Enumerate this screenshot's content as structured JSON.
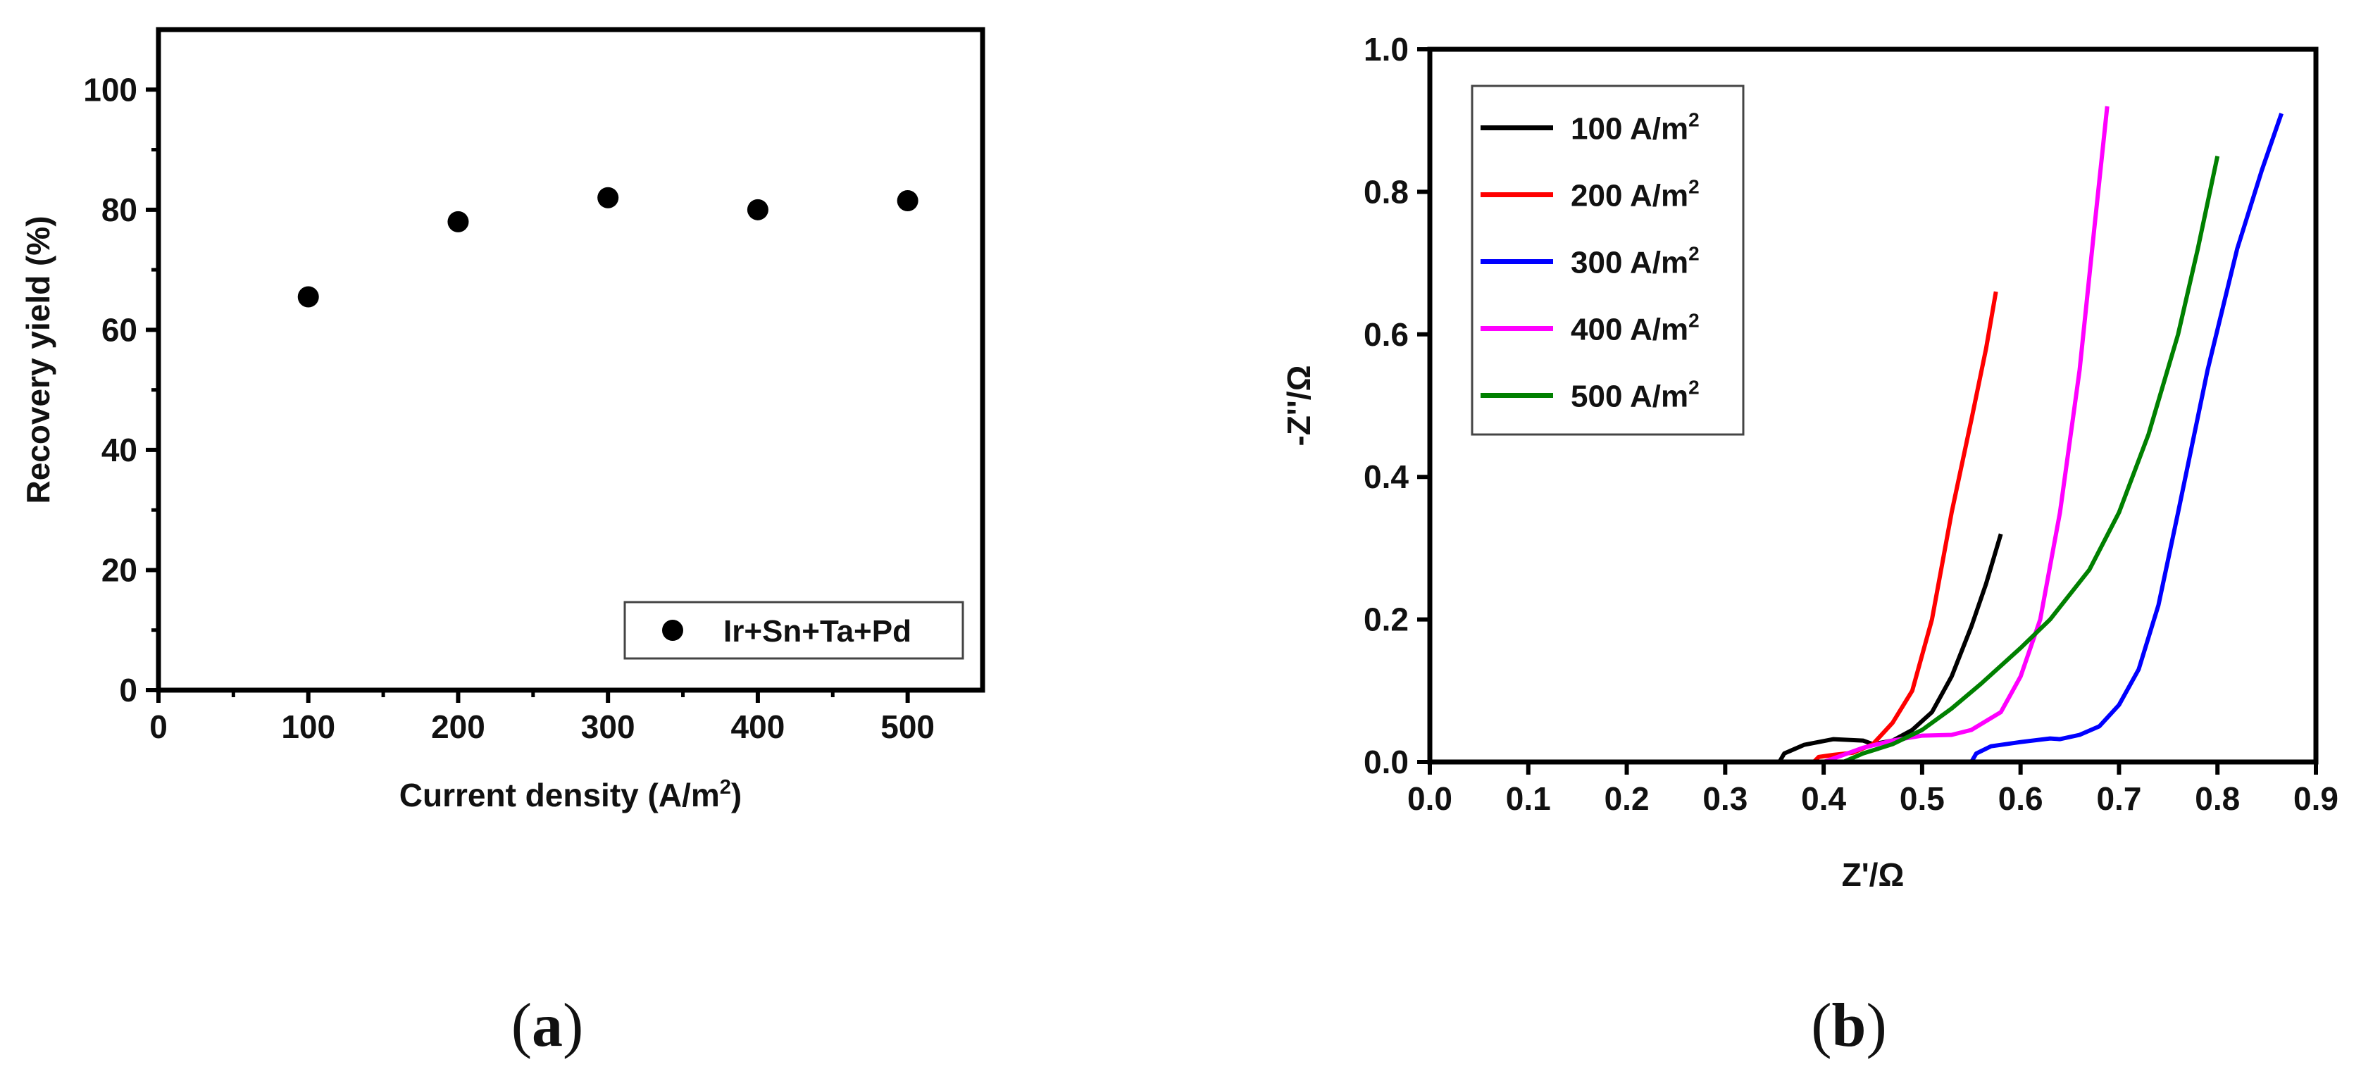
{
  "chart_data": [
    {
      "id": "a",
      "type": "scatter",
      "panel_label": "a",
      "xlabel": "Current density (A/m",
      "xlabel_sup": "2",
      "xlabel_tail": ")",
      "ylabel": "Recovery yield (%)",
      "xlim": [
        0,
        550
      ],
      "ylim": [
        0,
        110
      ],
      "xticks": [
        0,
        100,
        200,
        300,
        400,
        500
      ],
      "yticks": [
        0,
        20,
        40,
        60,
        80,
        100
      ],
      "grid": false,
      "legend_position": "bottom-right",
      "series": [
        {
          "name": "Ir+Sn+Ta+Pd",
          "color": "#000000",
          "x": [
            100,
            200,
            300,
            400,
            500
          ],
          "y": [
            65.5,
            78.0,
            82.0,
            80.0,
            81.5
          ]
        }
      ]
    },
    {
      "id": "b",
      "type": "line",
      "panel_label": "b",
      "xlabel": "Z'/Ω",
      "ylabel": "-Z''/Ω",
      "xlim": [
        0.0,
        0.9
      ],
      "ylim": [
        0.0,
        1.0
      ],
      "xticks": [
        0.0,
        0.1,
        0.2,
        0.3,
        0.4,
        0.5,
        0.6,
        0.7,
        0.8,
        0.9
      ],
      "yticks": [
        0.0,
        0.2,
        0.4,
        0.6,
        0.8,
        1.0
      ],
      "grid": false,
      "legend_position": "top-left",
      "series": [
        {
          "name": "100 A/m",
          "name_sup": "2",
          "color": "#000000",
          "points": [
            [
              0.355,
              0.0
            ],
            [
              0.36,
              0.012
            ],
            [
              0.38,
              0.024
            ],
            [
              0.41,
              0.032
            ],
            [
              0.44,
              0.03
            ],
            [
              0.45,
              0.025
            ],
            [
              0.47,
              0.03
            ],
            [
              0.49,
              0.045
            ],
            [
              0.51,
              0.07
            ],
            [
              0.53,
              0.12
            ],
            [
              0.55,
              0.19
            ],
            [
              0.565,
              0.25
            ],
            [
              0.58,
              0.32
            ]
          ]
        },
        {
          "name": "200 A/m",
          "name_sup": "2",
          "color": "#ff0000",
          "points": [
            [
              0.39,
              0.0
            ],
            [
              0.395,
              0.007
            ],
            [
              0.41,
              0.01
            ],
            [
              0.43,
              0.013
            ],
            [
              0.45,
              0.025
            ],
            [
              0.47,
              0.055
            ],
            [
              0.49,
              0.1
            ],
            [
              0.51,
              0.2
            ],
            [
              0.53,
              0.35
            ],
            [
              0.55,
              0.48
            ],
            [
              0.565,
              0.58
            ],
            [
              0.575,
              0.66
            ]
          ]
        },
        {
          "name": "300 A/m",
          "name_sup": "2",
          "color": "#0000ff",
          "points": [
            [
              0.55,
              0.0
            ],
            [
              0.555,
              0.012
            ],
            [
              0.57,
              0.022
            ],
            [
              0.6,
              0.028
            ],
            [
              0.63,
              0.033
            ],
            [
              0.64,
              0.032
            ],
            [
              0.66,
              0.038
            ],
            [
              0.68,
              0.05
            ],
            [
              0.7,
              0.08
            ],
            [
              0.72,
              0.13
            ],
            [
              0.74,
              0.22
            ],
            [
              0.76,
              0.35
            ],
            [
              0.79,
              0.55
            ],
            [
              0.82,
              0.72
            ],
            [
              0.845,
              0.83
            ],
            [
              0.865,
              0.91
            ]
          ]
        },
        {
          "name": "400 A/m",
          "name_sup": "2",
          "color": "#ff00ff",
          "points": [
            [
              0.4,
              0.0
            ],
            [
              0.42,
              0.01
            ],
            [
              0.44,
              0.02
            ],
            [
              0.47,
              0.03
            ],
            [
              0.5,
              0.037
            ],
            [
              0.53,
              0.038
            ],
            [
              0.55,
              0.045
            ],
            [
              0.58,
              0.07
            ],
            [
              0.6,
              0.12
            ],
            [
              0.62,
              0.2
            ],
            [
              0.64,
              0.35
            ],
            [
              0.66,
              0.55
            ],
            [
              0.675,
              0.75
            ],
            [
              0.688,
              0.92
            ]
          ]
        },
        {
          "name": "500 A/m",
          "name_sup": "2",
          "color": "#008000",
          "points": [
            [
              0.42,
              0.0
            ],
            [
              0.44,
              0.012
            ],
            [
              0.47,
              0.025
            ],
            [
              0.5,
              0.045
            ],
            [
              0.53,
              0.075
            ],
            [
              0.56,
              0.11
            ],
            [
              0.6,
              0.16
            ],
            [
              0.63,
              0.2
            ],
            [
              0.67,
              0.27
            ],
            [
              0.7,
              0.35
            ],
            [
              0.73,
              0.46
            ],
            [
              0.76,
              0.6
            ],
            [
              0.78,
              0.72
            ],
            [
              0.8,
              0.85
            ]
          ]
        }
      ]
    }
  ]
}
